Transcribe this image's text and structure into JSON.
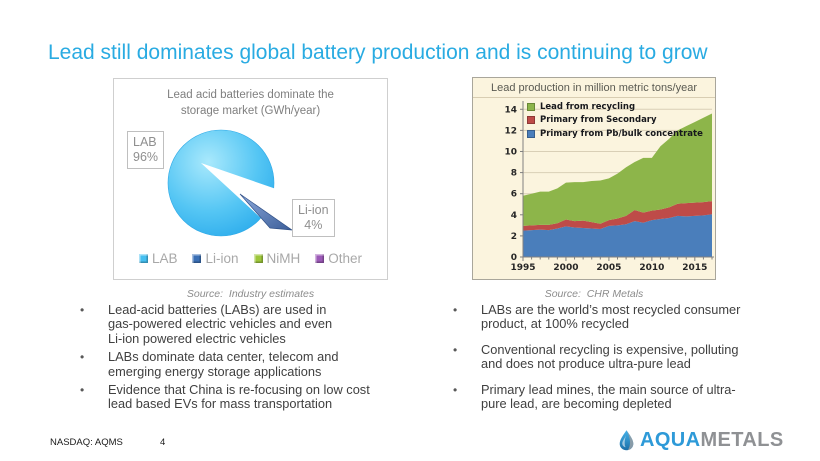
{
  "slide": {
    "title": "Lead still dominates global battery production and is continuing to grow",
    "accent_color": "#29ABE2"
  },
  "pie_panel": {
    "title": "Lead acid batteries dominate the\nstorage market (GWh/year)",
    "lab_callout": "LAB\n96%",
    "liion_callout": "Li-ion\n4%",
    "legend": [
      {
        "label": "LAB",
        "color": "#45BFF0"
      },
      {
        "label": "Li-ion",
        "color": "#3A6FB5"
      },
      {
        "label": "NiMH",
        "color": "#9DC63B"
      },
      {
        "label": "Other",
        "color": "#9B59B6"
      }
    ],
    "source": "Source:  Industry estimates"
  },
  "area_panel": {
    "title": "Lead production in million metric tons/year",
    "legend": [
      {
        "label": "Lead from recycling",
        "color": "#8DB54A"
      },
      {
        "label": "Primary from Secondary",
        "color": "#BE4B48"
      },
      {
        "label": "Primary from Pb/bulk concentrate",
        "color": "#4A7EBB"
      }
    ],
    "source": "Source:  CHR Metals"
  },
  "bullets_left": [
    "Lead-acid batteries (LABs) are used in\ngas-powered electric vehicles and even\nLi-ion powered electric vehicles",
    "LABs dominate data center, telecom and\nemerging energy storage applications",
    "Evidence that China is re-focusing on low cost\nlead based EVs for mass transportation"
  ],
  "bullets_right": [
    "LABs are the world’s most recycled consumer\nproduct, at 100% recycled",
    "Conventional recycling is expensive, polluting\nand does not produce ultra-pure lead",
    "Primary lead mines, the main source of ultra-\npure lead, are becoming depleted"
  ],
  "footer": {
    "ticker": "NASDAQ: AQMS",
    "page_number": "4",
    "logo_aqua": "AQUA",
    "logo_metals": "METALS"
  },
  "chart_data": [
    {
      "type": "pie",
      "title": "Lead acid batteries dominate the storage market (GWh/year)",
      "labels": [
        "LAB",
        "Li-ion",
        "NiMH",
        "Other"
      ],
      "values": [
        96,
        4,
        0,
        0
      ],
      "units": "%",
      "colors": [
        "#45BFF0",
        "#3A6FB5",
        "#9DC63B",
        "#9B59B6"
      ],
      "legend_position": "bottom",
      "source": "Industry estimates"
    },
    {
      "type": "area",
      "stacked": true,
      "title": "Lead production in million metric tons/year",
      "x": [
        1995,
        1996,
        1997,
        1998,
        1999,
        2000,
        2001,
        2002,
        2003,
        2004,
        2005,
        2006,
        2007,
        2008,
        2009,
        2010,
        2011,
        2012,
        2013,
        2014,
        2015,
        2016,
        2017
      ],
      "series": [
        {
          "name": "Primary from Pb/bulk concentrate",
          "color": "#4A7EBB",
          "values": [
            2.5,
            2.55,
            2.6,
            2.55,
            2.7,
            2.9,
            2.8,
            2.75,
            2.7,
            2.65,
            2.95,
            3.0,
            3.1,
            3.4,
            3.25,
            3.5,
            3.6,
            3.7,
            3.9,
            3.85,
            3.9,
            3.95,
            4.05
          ]
        },
        {
          "name": "Primary from Secondary",
          "color": "#BE4B48",
          "values": [
            0.45,
            0.45,
            0.45,
            0.5,
            0.5,
            0.65,
            0.6,
            0.7,
            0.6,
            0.5,
            0.55,
            0.65,
            0.8,
            1.05,
            0.95,
            0.9,
            0.9,
            1.0,
            1.15,
            1.25,
            1.25,
            1.25,
            1.25
          ]
        },
        {
          "name": "Lead from recycling",
          "color": "#8DB54A",
          "values": [
            2.85,
            3.0,
            3.15,
            3.15,
            3.3,
            3.5,
            3.7,
            3.65,
            3.9,
            4.1,
            3.95,
            4.25,
            4.6,
            4.55,
            5.2,
            5.0,
            6.0,
            6.5,
            6.95,
            7.3,
            7.65,
            8.0,
            8.3
          ]
        }
      ],
      "ylim": [
        0,
        14.5
      ],
      "yticks": [
        0,
        2,
        4,
        6,
        8,
        10,
        12,
        14
      ],
      "xticks": [
        1995,
        2000,
        2005,
        2010,
        2015
      ],
      "grid": "horizontal",
      "legend_position": "top-left-inside",
      "plot_background": "#FBF4DE",
      "source": "CHR Metals"
    }
  ]
}
